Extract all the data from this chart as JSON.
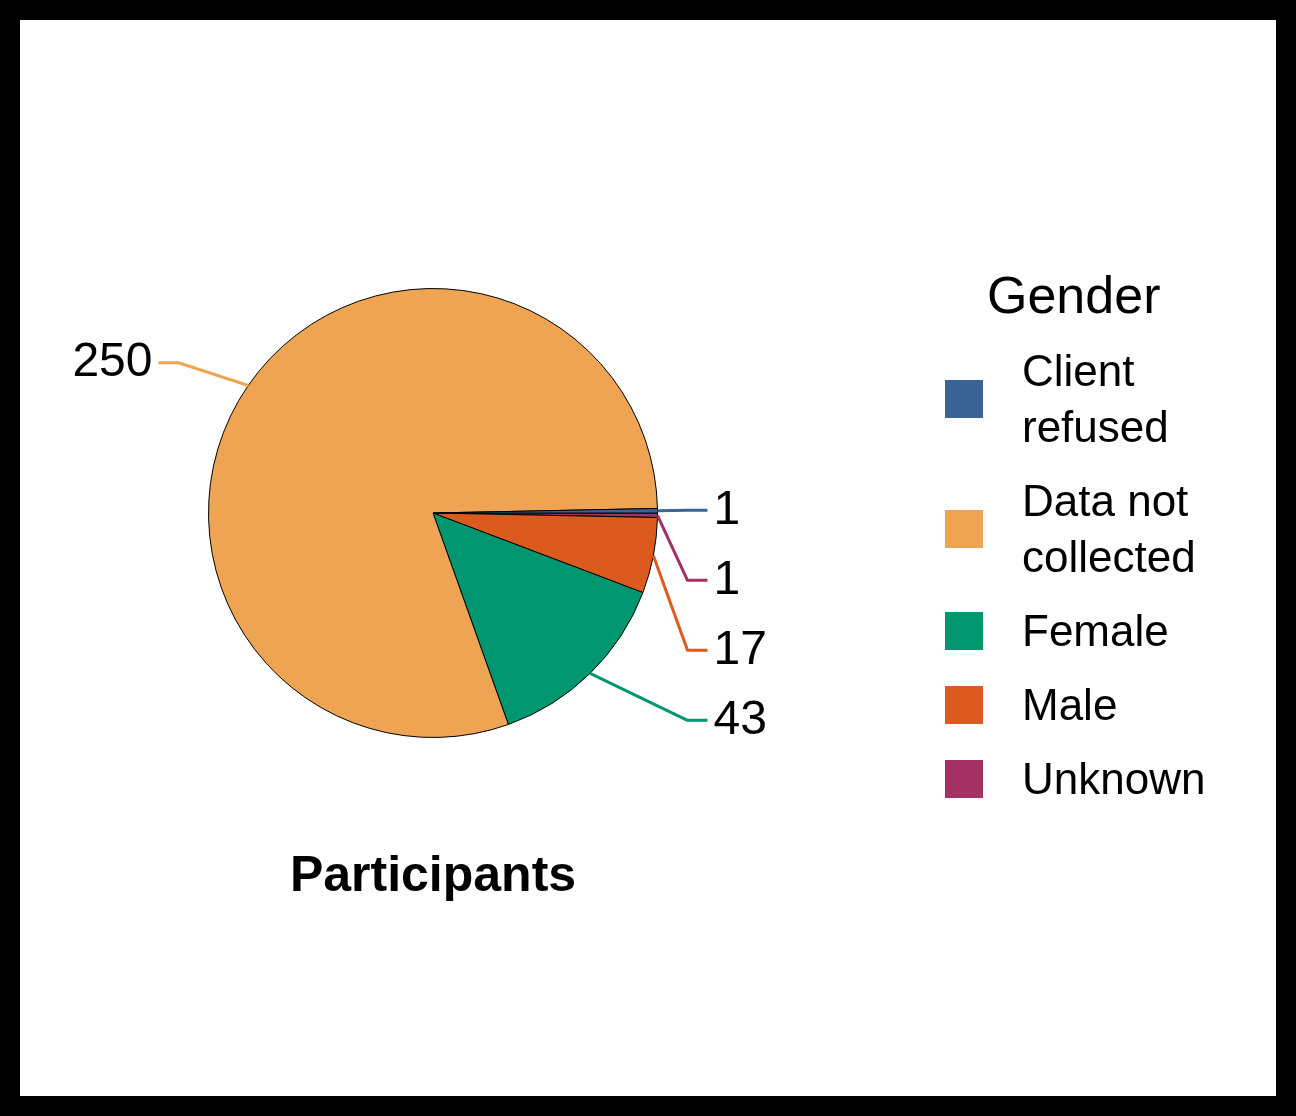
{
  "chart_data": {
    "type": "pie",
    "title": "Participants",
    "legend_title": "Gender",
    "legend": "right",
    "data_labels": true,
    "categories": [
      "Client refused",
      "Data not collected",
      "Female",
      "Male",
      "Unknown"
    ],
    "values": [
      1,
      250,
      43,
      17,
      1
    ],
    "colors": [
      "#3b6496",
      "#eea452",
      "#009670",
      "#dd5a1e",
      "#a33163"
    ]
  }
}
